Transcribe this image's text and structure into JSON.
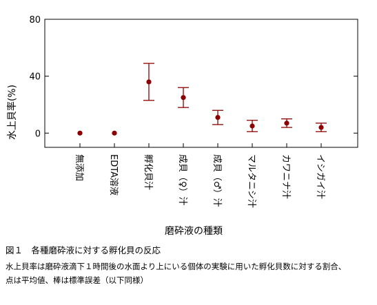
{
  "chart_data": {
    "type": "scatter",
    "errorbars": true,
    "categories": [
      "無添加",
      "EDTA溶液",
      "孵化貝汁",
      "成貝（♀）汁",
      "成貝（♂）汁",
      "マルタニシ汁",
      "カワニナ汁",
      "イシガイ汁"
    ],
    "values": [
      0,
      0,
      36,
      25,
      11,
      5,
      7,
      4
    ],
    "errors": [
      0,
      0,
      13,
      7,
      5,
      4,
      3,
      3
    ],
    "yticks": [
      0,
      40,
      80
    ],
    "ylim": [
      -10,
      80
    ],
    "ylabel": "水上貝率(%)",
    "xlabel": "磨砕液の種類",
    "marker_color": "#8b0000"
  },
  "caption": {
    "title": "図１　各種磨砕液に対する孵化貝の反応",
    "line1": "水上貝率は磨砕液滴下１時間後の水面より上にいる個体の実験に用いた孵化貝数に対する割合、",
    "line2": "点は平均値、棒は標準誤差（以下同様）"
  }
}
